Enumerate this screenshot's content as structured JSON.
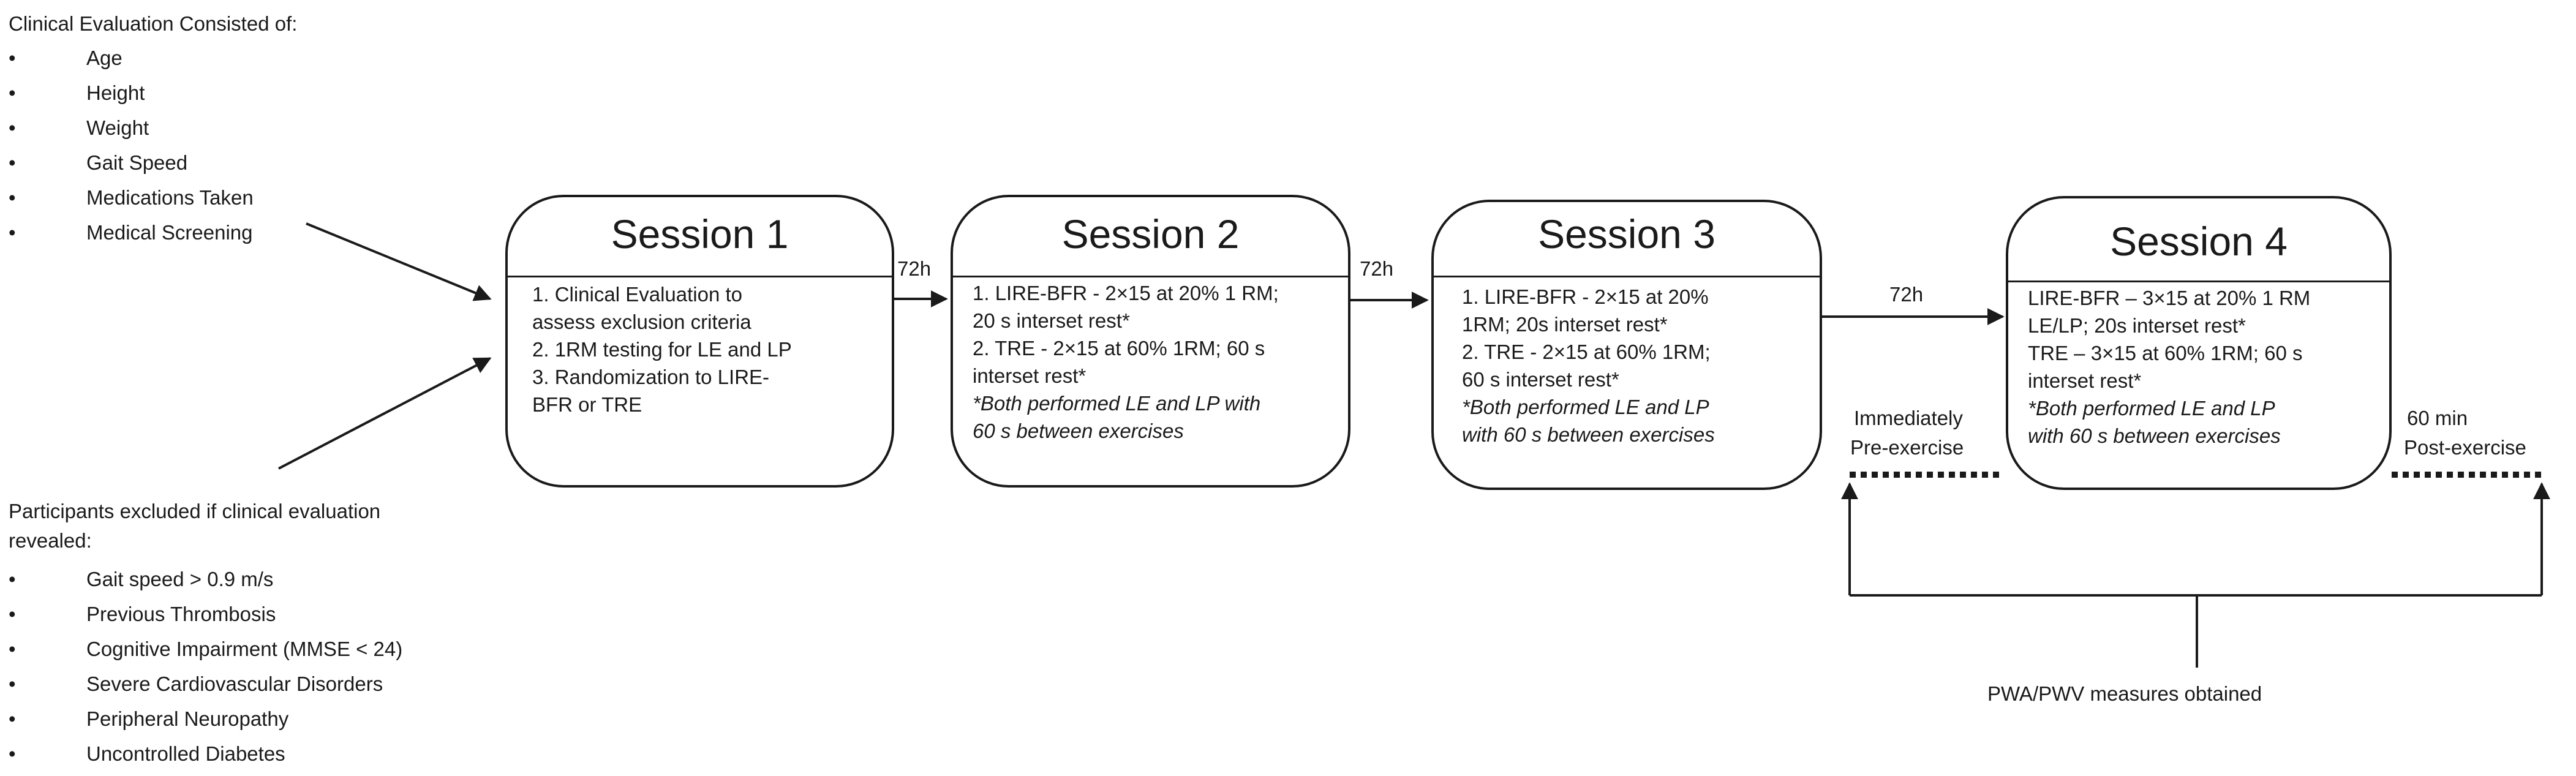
{
  "clinical": {
    "heading": "Clinical Evaluation Consisted of:",
    "items": [
      "Age",
      "Height",
      "Weight",
      "Gait Speed",
      "Medications Taken",
      "Medical Screening"
    ]
  },
  "exclusion": {
    "heading_line1": "Participants excluded if clinical evaluation",
    "heading_line2": "revealed:",
    "items": [
      "Gait speed > 0.9 m/s",
      "Previous Thrombosis",
      "Cognitive Impairment (MMSE < 24)",
      "Severe Cardiovascular Disorders",
      "Peripheral Neuropathy",
      "Uncontrolled Diabetes"
    ]
  },
  "sessions": [
    {
      "title": "Session 1",
      "lines": [
        "1. Clinical Evaluation to",
        "assess exclusion criteria",
        "2. 1RM testing for LE and LP",
        "3. Randomization to LIRE-",
        "BFR or TRE"
      ],
      "notes": []
    },
    {
      "title": "Session 2",
      "lines": [
        "1. LIRE-BFR - 2×15 at 20%  1 RM;",
        "20 s interset rest*",
        "2. TRE - 2×15 at 60% 1RM; 60 s",
        "interset rest*"
      ],
      "notes": [
        " *Both performed LE and LP with",
        "60 s between exercises"
      ]
    },
    {
      "title": "Session 3",
      "lines": [
        "1. LIRE-BFR - 2×15 at 20%",
        "1RM; 20s interset rest*",
        "2. TRE - 2×15 at 60% 1RM;",
        "60 s interset rest*"
      ],
      "notes": [
        " *Both performed LE and LP",
        "with 60 s between exercises"
      ]
    },
    {
      "title": "Session 4",
      "lines": [
        "LIRE-BFR – 3×15 at 20% 1 RM",
        "LE/LP;  20s interset rest*",
        "TRE – 3×15 at 60% 1RM; 60 s",
        "interset rest*"
      ],
      "notes": [
        "*Both performed LE and LP",
        "with 60 s between exercises"
      ]
    }
  ],
  "intervals": [
    "72h",
    "72h",
    "72h"
  ],
  "timepoints": {
    "pre_line1": "Immediately",
    "pre_line2": "Pre-exercise",
    "post_line1": "60 min",
    "post_line2": "Post-exercise"
  },
  "measures": "PWA/PWV measures obtained",
  "colors": {
    "line": "#1a1a1a",
    "background": "#ffffff"
  }
}
